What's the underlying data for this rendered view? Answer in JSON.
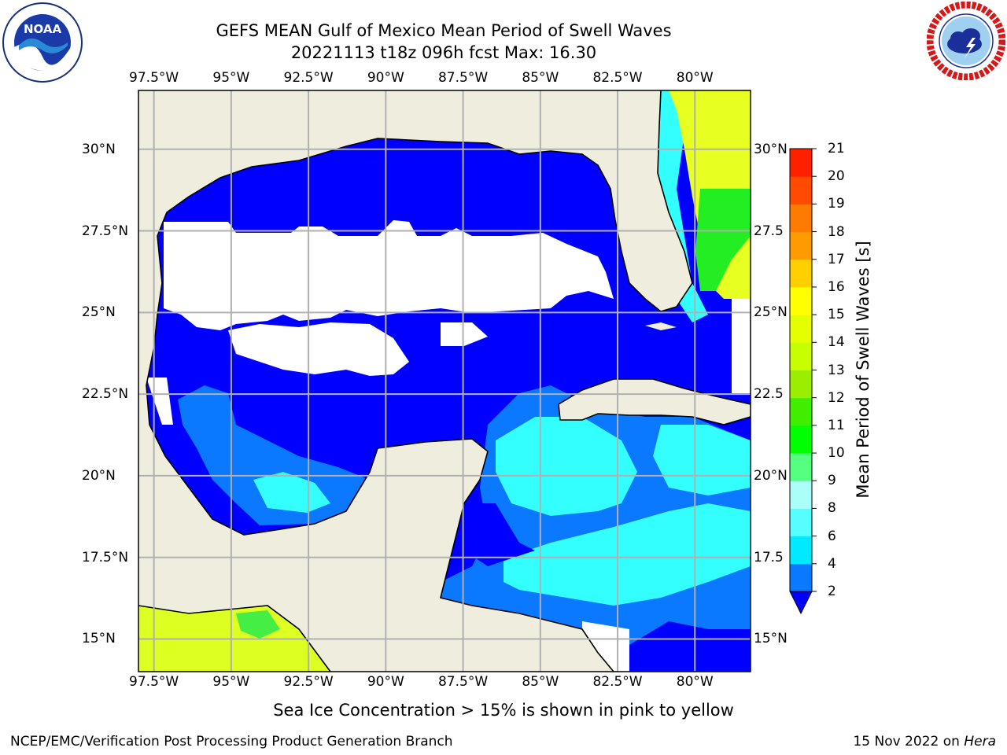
{
  "title": {
    "line1": "GEFS MEAN Gulf of Mexico Mean Period of Swell Waves",
    "line2": "20221113 t18z 096h fcst   Max: 16.30"
  },
  "axes": {
    "longitude_ticks": [
      "97.5°W",
      "95°W",
      "92.5°W",
      "90°W",
      "87.5°W",
      "85°W",
      "82.5°W",
      "80°W"
    ],
    "latitude_ticks_left": [
      "30°N",
      "27.5°N",
      "25°N",
      "22.5°N",
      "20°N",
      "17.5°N",
      "15°N"
    ],
    "latitude_ticks_right": [
      "30°N",
      "27.5",
      "25°N",
      "22.5",
      "20°N",
      "17.5",
      "15°N"
    ],
    "lon_values": [
      -97.5,
      -95,
      -92.5,
      -90,
      -87.5,
      -85,
      -82.5,
      -80
    ],
    "lat_values": [
      30,
      27.5,
      25,
      22.5,
      20,
      17.5,
      15
    ],
    "lon_range": [
      -98,
      -78.2
    ],
    "lat_range": [
      14,
      31.8
    ],
    "grid": true
  },
  "colorbar": {
    "label": "Mean Period of Swell Waves [s]",
    "levels": [
      "2",
      "4",
      "6",
      "8",
      "9",
      "10",
      "11",
      "12",
      "13",
      "14",
      "15",
      "16",
      "17",
      "18",
      "19",
      "20",
      "21"
    ],
    "colors": [
      "#0000ff",
      "#0a78ff",
      "#00eaff",
      "#55ffff",
      "#aafff8",
      "#55ff80",
      "#00ff00",
      "#40ef00",
      "#9aef00",
      "#c8ff00",
      "#e6ff00",
      "#ffff00",
      "#ffd000",
      "#ff9a00",
      "#ff7a00",
      "#ff4a00",
      "#ff2000",
      "#ff0000"
    ],
    "extend": "min"
  },
  "map_colors": {
    "land": "#efeede",
    "ocean_blue": "#0000ff",
    "mid_blue": "#0a78ff",
    "cyan": "#33ffff",
    "light_cyan": "#66ffff",
    "green": "#22ee22",
    "yellow": "#ffff00",
    "yellow_green": "#ddff22",
    "gray_grid": "#b0b0b0"
  },
  "logos": {
    "left": {
      "icon": "noaa-logo",
      "text": "NOAA"
    },
    "right": {
      "icon": "nws-logo"
    }
  },
  "note": "Sea Ice Concentration > 15% is shown in pink to yellow",
  "footer": {
    "left": "NCEP/EMC/Verification Post Processing Product Generation Branch",
    "right_date": "15 Nov 2022 on ",
    "right_host": "Hera"
  }
}
